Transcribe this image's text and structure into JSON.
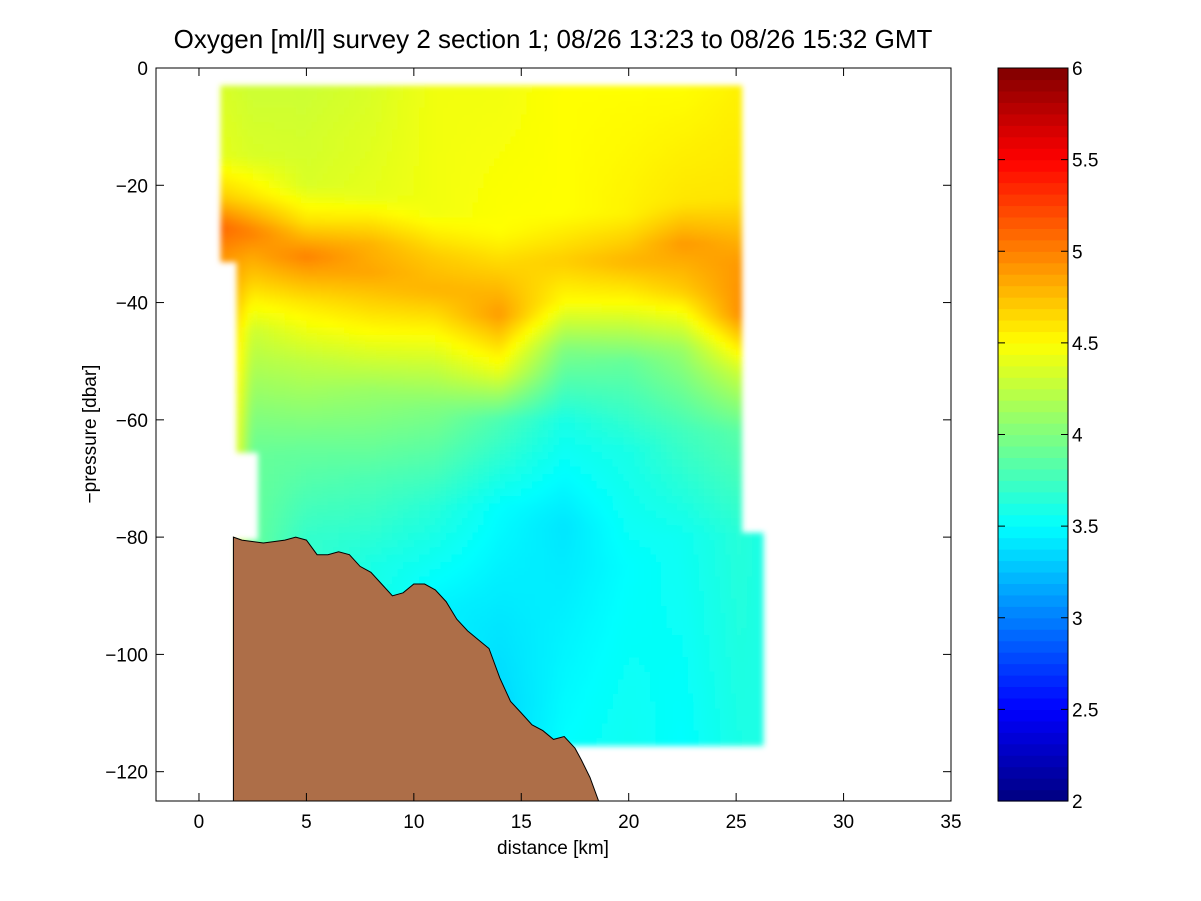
{
  "chart_data": {
    "type": "heatmap",
    "title": "Oxygen [ml/l] survey 2 section 1; 08/26 13:23 to 08/26 15:32 GMT",
    "xlabel": "distance [km]",
    "ylabel": "−pressure [dbar]",
    "xlim": [
      -2,
      35
    ],
    "ylim": [
      -125,
      0
    ],
    "x_ticks": [
      0,
      5,
      10,
      15,
      20,
      25,
      30,
      35
    ],
    "x_tick_labels": [
      "0",
      "5",
      "10",
      "15",
      "20",
      "25",
      "30",
      "35"
    ],
    "y_ticks": [
      0,
      -20,
      -40,
      -60,
      -80,
      -100,
      -120
    ],
    "y_tick_labels": [
      "0",
      "−20",
      "−40",
      "−60",
      "−80",
      "−100",
      "−120"
    ],
    "colorbar": {
      "colormap": "jet",
      "clim": [
        2,
        6
      ],
      "ticks": [
        2,
        2.5,
        3,
        3.5,
        4,
        4.5,
        5,
        5.5,
        6
      ],
      "tick_labels": [
        "2",
        "2.5",
        "3",
        "3.5",
        "4",
        "4.5",
        "5",
        "5.5",
        "6"
      ]
    },
    "field": {
      "unit": "ml/l",
      "x_extent_km": [
        1.0,
        26.2
      ],
      "depth_extent_dbar": [
        -3,
        -115
      ],
      "profiles": [
        {
          "x": 1.0,
          "surface": -3,
          "values": [
            [
              -3,
              4.35
            ],
            [
              -15,
              4.4
            ],
            [
              -22,
              4.7
            ],
            [
              -27,
              5.1
            ],
            [
              -33,
              4.9
            ]
          ]
        },
        {
          "x": 2.5,
          "surface": -3,
          "values": [
            [
              -3,
              4.3
            ],
            [
              -15,
              4.35
            ],
            [
              -22,
              4.6
            ],
            [
              -28,
              5.0
            ],
            [
              -36,
              4.7
            ],
            [
              -45,
              4.3
            ],
            [
              -60,
              4.0
            ],
            [
              -66,
              3.9
            ]
          ]
        },
        {
          "x": 5,
          "surface": -3,
          "values": [
            [
              -3,
              4.3
            ],
            [
              -20,
              4.35
            ],
            [
              -26,
              4.6
            ],
            [
              -32,
              5.0
            ],
            [
              -40,
              4.6
            ],
            [
              -50,
              4.25
            ],
            [
              -65,
              3.9
            ],
            [
              -80,
              3.7
            ]
          ]
        },
        {
          "x": 8,
          "surface": -3,
          "values": [
            [
              -3,
              4.35
            ],
            [
              -22,
              4.4
            ],
            [
              -30,
              4.8
            ],
            [
              -35,
              4.85
            ],
            [
              -45,
              4.5
            ],
            [
              -55,
              4.1
            ],
            [
              -70,
              3.8
            ],
            [
              -85,
              3.6
            ]
          ]
        },
        {
          "x": 11,
          "surface": -3,
          "values": [
            [
              -3,
              4.45
            ],
            [
              -25,
              4.45
            ],
            [
              -32,
              4.7
            ],
            [
              -38,
              4.8
            ],
            [
              -48,
              4.4
            ],
            [
              -58,
              4.0
            ],
            [
              -75,
              3.65
            ],
            [
              -92,
              3.45
            ]
          ]
        },
        {
          "x": 14,
          "surface": -3,
          "values": [
            [
              -3,
              4.45
            ],
            [
              -28,
              4.5
            ],
            [
              -35,
              4.7
            ],
            [
              -42,
              4.9
            ],
            [
              -52,
              4.4
            ],
            [
              -60,
              3.8
            ],
            [
              -75,
              3.5
            ],
            [
              -95,
              3.4
            ],
            [
              -108,
              3.35
            ]
          ]
        },
        {
          "x": 17,
          "surface": -3,
          "values": [
            [
              -3,
              4.5
            ],
            [
              -25,
              4.5
            ],
            [
              -33,
              4.7
            ],
            [
              -40,
              4.5
            ],
            [
              -48,
              4.0
            ],
            [
              -60,
              3.6
            ],
            [
              -78,
              3.4
            ],
            [
              -95,
              3.45
            ],
            [
              -115,
              3.5
            ]
          ]
        },
        {
          "x": 20,
          "surface": -3,
          "values": [
            [
              -3,
              4.5
            ],
            [
              -25,
              4.55
            ],
            [
              -33,
              4.8
            ],
            [
              -40,
              4.5
            ],
            [
              -50,
              3.9
            ],
            [
              -65,
              3.6
            ],
            [
              -85,
              3.5
            ],
            [
              -115,
              3.55
            ]
          ]
        },
        {
          "x": 22.5,
          "surface": -3,
          "values": [
            [
              -3,
              4.5
            ],
            [
              -23,
              4.6
            ],
            [
              -30,
              4.9
            ],
            [
              -38,
              4.7
            ],
            [
              -48,
              4.1
            ],
            [
              -62,
              3.75
            ],
            [
              -80,
              3.55
            ],
            [
              -115,
              3.5
            ]
          ]
        },
        {
          "x": 25.2,
          "surface": -3,
          "values": [
            [
              -3,
              4.55
            ],
            [
              -22,
              4.6
            ],
            [
              -33,
              4.9
            ],
            [
              -42,
              4.95
            ],
            [
              -52,
              4.3
            ],
            [
              -62,
              3.85
            ],
            [
              -80,
              3.65
            ],
            [
              -115,
              3.6
            ]
          ]
        },
        {
          "x": 26.2,
          "surface": -79,
          "values": [
            [
              -79,
              3.6
            ],
            [
              -115,
              3.6
            ]
          ]
        }
      ]
    },
    "bottom": {
      "color": "#ad6e48",
      "profile": [
        [
          1.6,
          -125
        ],
        [
          1.6,
          -80
        ],
        [
          2.0,
          -80.5
        ],
        [
          3.0,
          -81
        ],
        [
          4.0,
          -80.5
        ],
        [
          4.5,
          -80
        ],
        [
          5.0,
          -80.5
        ],
        [
          5.5,
          -83
        ],
        [
          6.0,
          -83
        ],
        [
          6.5,
          -82.5
        ],
        [
          7.0,
          -83
        ],
        [
          7.5,
          -85
        ],
        [
          8.0,
          -86
        ],
        [
          8.5,
          -88
        ],
        [
          9.0,
          -90
        ],
        [
          9.5,
          -89.5
        ],
        [
          10.0,
          -88
        ],
        [
          10.5,
          -88
        ],
        [
          11.0,
          -89
        ],
        [
          11.5,
          -91
        ],
        [
          12.0,
          -94
        ],
        [
          12.5,
          -96
        ],
        [
          13.0,
          -97.5
        ],
        [
          13.5,
          -99
        ],
        [
          14.0,
          -104
        ],
        [
          14.5,
          -108
        ],
        [
          15.0,
          -110
        ],
        [
          15.5,
          -112
        ],
        [
          16.0,
          -113
        ],
        [
          16.5,
          -114.5
        ],
        [
          17.0,
          -114
        ],
        [
          17.5,
          -116
        ],
        [
          17.8,
          -118
        ],
        [
          18.2,
          -121
        ],
        [
          18.6,
          -125
        ]
      ]
    }
  }
}
